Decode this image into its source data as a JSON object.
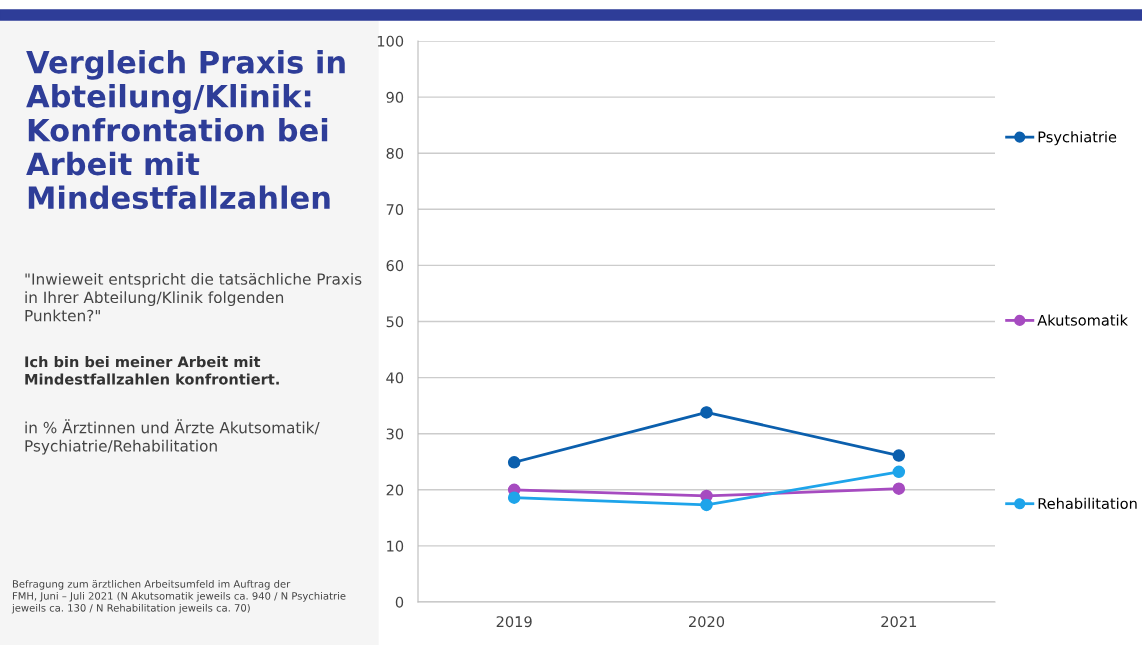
{
  "chart_data": {
    "type": "line",
    "title": "Vergleich Praxis in\nAbteilung/Klinik:\nKonfrontation bei\nArbeit mit\nMindestfallzahlen",
    "subtitle": "\"Inwieweit entspricht die tatsächliche Praxis\nin Ihrer Abteilung/Klinik folgenden\nPunkten?\"",
    "annotations": [
      "Ich bin bei meiner Arbeit mit\nMindestfallzahlen konfrontiert.",
      "in % Ärztinnen und Ärzte Akutsomatik/\nPsychiatrie/Rehabilitation",
      "Befragung zum ärztlichen Arbeitsumfeld im Auftrag der\nFMH, Juni – Juli 2021 (N Akutsomatik jeweils ca. 940 / N Psychiatrie\njeweils ca. 130 / N Rehabilitation jeweils ca. 70)"
    ],
    "categories": [
      "2019",
      "2020",
      "2021"
    ],
    "series": [
      {
        "name": "Psychiatrie",
        "color": "#0b5fad",
        "values": [
          24.9,
          33.8,
          26.1
        ]
      },
      {
        "name": "Akutsomatik",
        "color": "#a64bc0",
        "values": [
          20.0,
          18.9,
          20.2
        ]
      },
      {
        "name": "Rehabilitation",
        "color": "#1ea4ea",
        "values": [
          18.6,
          17.3,
          23.2
        ]
      }
    ],
    "ylim": [
      0,
      100
    ],
    "yticks": [
      0,
      10,
      20,
      30,
      40,
      50,
      60,
      70,
      80,
      90,
      100
    ],
    "grid": "y",
    "legend": "right",
    "marker": "circle",
    "line_style": "solid"
  }
}
